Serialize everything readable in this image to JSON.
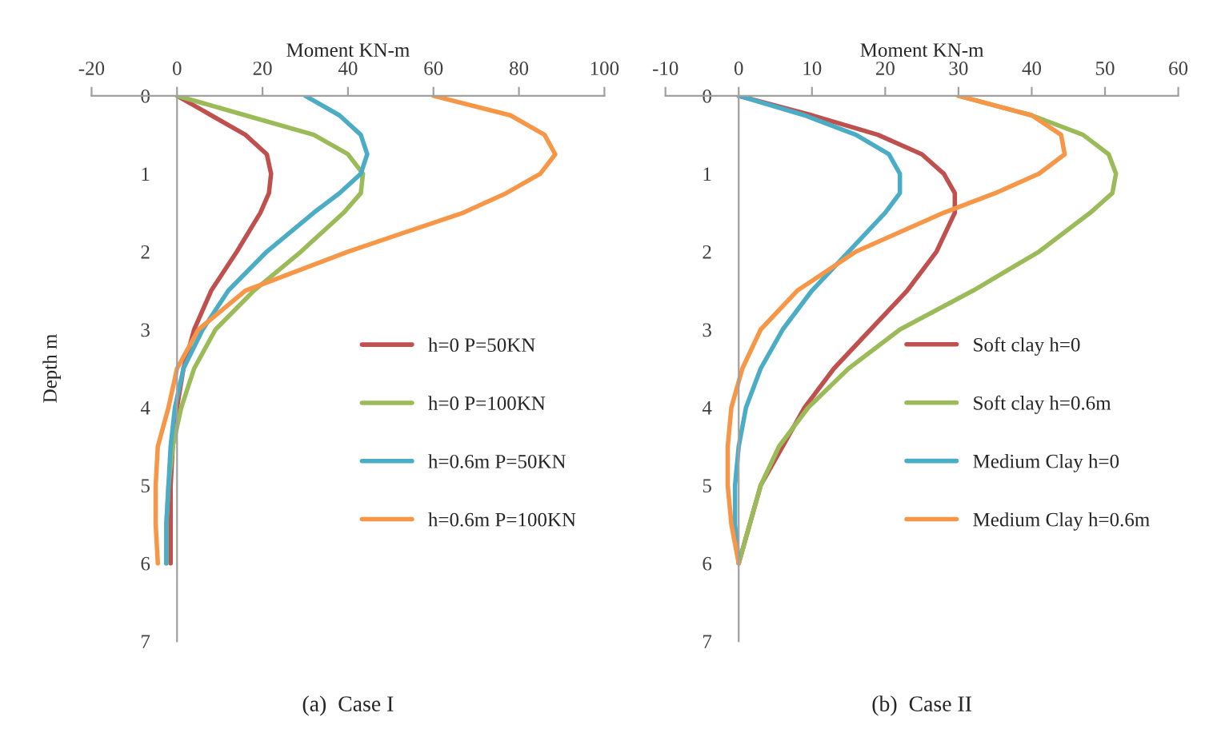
{
  "chart_data": [
    {
      "type": "line",
      "xlabel": "Moment KN-m",
      "ylabel": "Depth m",
      "xlim": [
        -20,
        100
      ],
      "xticks": [
        -20,
        0,
        20,
        40,
        60,
        80,
        100
      ],
      "ylim": [
        7,
        0
      ],
      "yticks": [
        0,
        1,
        2,
        3,
        4,
        5,
        6,
        7
      ],
      "grid": false,
      "legend": "bottom right",
      "marker": "none",
      "line_style": "solid",
      "annotations": [
        "(a)  Case I"
      ],
      "series": [
        {
          "name": "h=0 P=50KN",
          "color": "#c0504d",
          "x": [
            0,
            8,
            16,
            21,
            22,
            21.5,
            19.5,
            14,
            8,
            4,
            1.5,
            0,
            -1,
            -1.5,
            -1.5,
            -1.5
          ],
          "values": [
            0,
            0.25,
            0.5,
            0.75,
            1,
            1.25,
            1.5,
            2,
            2.5,
            3,
            3.5,
            4,
            4.5,
            5,
            5.5,
            6
          ]
        },
        {
          "name": "h=0 P=100KN",
          "color": "#9bbb59",
          "x": [
            0,
            16,
            32,
            40,
            43.5,
            43,
            39,
            29,
            18,
            9,
            4,
            1,
            -1,
            -2,
            -2.5,
            -2.5
          ],
          "values": [
            0,
            0.25,
            0.5,
            0.75,
            1,
            1.25,
            1.5,
            2,
            2.5,
            3,
            3.5,
            4,
            4.5,
            5,
            5.5,
            6
          ]
        },
        {
          "name": "h=0.6m P=50KN",
          "color": "#4bacc6",
          "x": [
            30,
            38,
            43,
            44.5,
            43,
            38,
            32,
            21,
            12,
            6,
            1.5,
            -0.5,
            -1.5,
            -2,
            -2.5,
            -2.5
          ],
          "values": [
            0,
            0.25,
            0.5,
            0.75,
            1,
            1.25,
            1.5,
            2,
            2.5,
            3,
            3.5,
            4,
            4.5,
            5,
            5.5,
            6
          ]
        },
        {
          "name": "h=0.6m P=100KN",
          "color": "#f79646",
          "x": [
            60,
            78,
            86,
            88.5,
            85,
            77,
            67,
            40,
            16,
            5,
            0,
            -2,
            -4.5,
            -5,
            -5,
            -4.5
          ],
          "values": [
            0,
            0.25,
            0.5,
            0.75,
            1,
            1.25,
            1.5,
            2,
            2.5,
            3,
            3.5,
            4,
            4.5,
            5,
            5.5,
            6
          ]
        }
      ]
    },
    {
      "type": "line",
      "xlabel": "Moment KN-m",
      "xlim": [
        -10,
        60
      ],
      "xticks": [
        -10,
        0,
        10,
        20,
        30,
        40,
        50,
        60
      ],
      "ylim": [
        7,
        0
      ],
      "yticks": [
        0,
        1,
        2,
        3,
        4,
        5,
        6,
        7
      ],
      "grid": false,
      "legend": "bottom right",
      "marker": "none",
      "line_style": "solid",
      "annotations": [
        "(b)  Case II"
      ],
      "series": [
        {
          "name": "Soft clay h=0",
          "color": "#c0504d",
          "x": [
            0,
            10,
            19,
            25,
            28,
            29.5,
            29.5,
            27,
            23,
            18,
            13,
            9,
            6,
            3,
            1.5,
            0
          ],
          "values": [
            0,
            0.25,
            0.5,
            0.75,
            1,
            1.25,
            1.5,
            2,
            2.5,
            3,
            3.5,
            4,
            4.5,
            5,
            5.5,
            6
          ]
        },
        {
          "name": "Soft clay h=0.6m",
          "color": "#9bbb59",
          "x": [
            30,
            40,
            47,
            50.5,
            51.5,
            51,
            48,
            41,
            32,
            22,
            15,
            9.5,
            5.5,
            3,
            1.5,
            0
          ],
          "values": [
            0,
            0.25,
            0.5,
            0.75,
            1,
            1.25,
            1.5,
            2,
            2.5,
            3,
            3.5,
            4,
            4.5,
            5,
            5.5,
            6
          ]
        },
        {
          "name": "Medium Clay h=0",
          "color": "#4bacc6",
          "x": [
            0,
            9,
            16,
            20.5,
            22,
            22,
            20,
            15,
            10,
            6,
            3,
            1,
            0,
            -0.5,
            -0.5,
            0
          ],
          "values": [
            0,
            0.25,
            0.5,
            0.75,
            1,
            1.25,
            1.5,
            2,
            2.5,
            3,
            3.5,
            4,
            4.5,
            5,
            5.5,
            6
          ]
        },
        {
          "name": "Medium Clay h=0.6m",
          "color": "#f79646",
          "x": [
            30,
            40,
            44,
            44.5,
            41,
            35,
            28,
            16,
            8,
            3,
            0.5,
            -1,
            -1.5,
            -1.5,
            -1,
            0
          ],
          "values": [
            0,
            0.25,
            0.5,
            0.75,
            1,
            1.25,
            1.5,
            2,
            2.5,
            3,
            3.5,
            4,
            4.5,
            5,
            5.5,
            6
          ]
        }
      ]
    }
  ]
}
